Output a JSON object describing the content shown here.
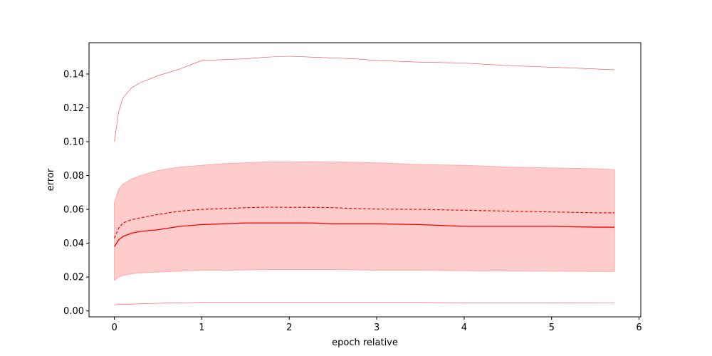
{
  "chart_data": {
    "type": "line",
    "xlabel": "epoch relative",
    "ylabel": "error",
    "xlim": [
      -0.29,
      6.02
    ],
    "ylim": [
      -0.0035,
      0.1585
    ],
    "x_ticks": [
      {
        "value": 0,
        "label": "0"
      },
      {
        "value": 1,
        "label": "1"
      },
      {
        "value": 2,
        "label": "2"
      },
      {
        "value": 3,
        "label": "3"
      },
      {
        "value": 4,
        "label": "4"
      },
      {
        "value": 5,
        "label": "5"
      },
      {
        "value": 6,
        "label": "6"
      }
    ],
    "y_ticks": [
      {
        "value": 0.0,
        "label": "0.00"
      },
      {
        "value": 0.02,
        "label": "0.02"
      },
      {
        "value": 0.04,
        "label": "0.04"
      },
      {
        "value": 0.06,
        "label": "0.06"
      },
      {
        "value": 0.08,
        "label": "0.08"
      },
      {
        "value": 0.1,
        "label": "0.10"
      },
      {
        "value": 0.12,
        "label": "0.12"
      },
      {
        "value": 0.14,
        "label": "0.14"
      }
    ],
    "grid": false,
    "legend": "none",
    "color": "#ff0000",
    "band_color": "#ffcccc",
    "x": [
      0,
      0.05,
      0.1,
      0.2,
      0.3,
      0.5,
      0.75,
      1.0,
      1.25,
      1.5,
      1.75,
      2.0,
      2.25,
      2.5,
      2.75,
      3.0,
      3.5,
      4.0,
      4.5,
      5.0,
      5.5,
      5.72
    ],
    "series": [
      {
        "role": "median",
        "style": "solid",
        "values": [
          0.038,
          0.042,
          0.044,
          0.046,
          0.047,
          0.048,
          0.05,
          0.051,
          0.0515,
          0.052,
          0.052,
          0.052,
          0.052,
          0.0515,
          0.0515,
          0.0515,
          0.051,
          0.05,
          0.05,
          0.05,
          0.0495,
          0.0495
        ]
      },
      {
        "role": "mean",
        "style": "dashed",
        "values": [
          0.043,
          0.049,
          0.052,
          0.054,
          0.055,
          0.057,
          0.059,
          0.06,
          0.0605,
          0.061,
          0.0613,
          0.0612,
          0.0612,
          0.061,
          0.0605,
          0.0602,
          0.06,
          0.0595,
          0.059,
          0.0585,
          0.058,
          0.058
        ]
      },
      {
        "role": "max",
        "style": "thin",
        "values": [
          0.1,
          0.118,
          0.126,
          0.132,
          0.135,
          0.139,
          0.143,
          0.148,
          0.1485,
          0.149,
          0.15,
          0.1505,
          0.15,
          0.1495,
          0.149,
          0.148,
          0.147,
          0.1465,
          0.145,
          0.144,
          0.143,
          0.1425
        ]
      },
      {
        "role": "min",
        "style": "thin",
        "values": [
          0.0035,
          0.004,
          0.004,
          0.004,
          0.0042,
          0.0045,
          0.0048,
          0.005,
          0.005,
          0.005,
          0.005,
          0.005,
          0.005,
          0.005,
          0.005,
          0.005,
          0.005,
          0.0048,
          0.0048,
          0.0048,
          0.0047,
          0.0047
        ]
      }
    ],
    "band": {
      "lower": [
        0.018,
        0.02,
        0.021,
        0.022,
        0.0225,
        0.023,
        0.0235,
        0.024,
        0.024,
        0.0242,
        0.0245,
        0.0245,
        0.0245,
        0.0245,
        0.0243,
        0.024,
        0.024,
        0.0238,
        0.0236,
        0.0235,
        0.0233,
        0.0233
      ],
      "upper": [
        0.064,
        0.072,
        0.075,
        0.078,
        0.08,
        0.083,
        0.085,
        0.086,
        0.087,
        0.0875,
        0.088,
        0.088,
        0.0882,
        0.088,
        0.0878,
        0.0875,
        0.0865,
        0.086,
        0.085,
        0.0845,
        0.084,
        0.0835
      ]
    }
  }
}
